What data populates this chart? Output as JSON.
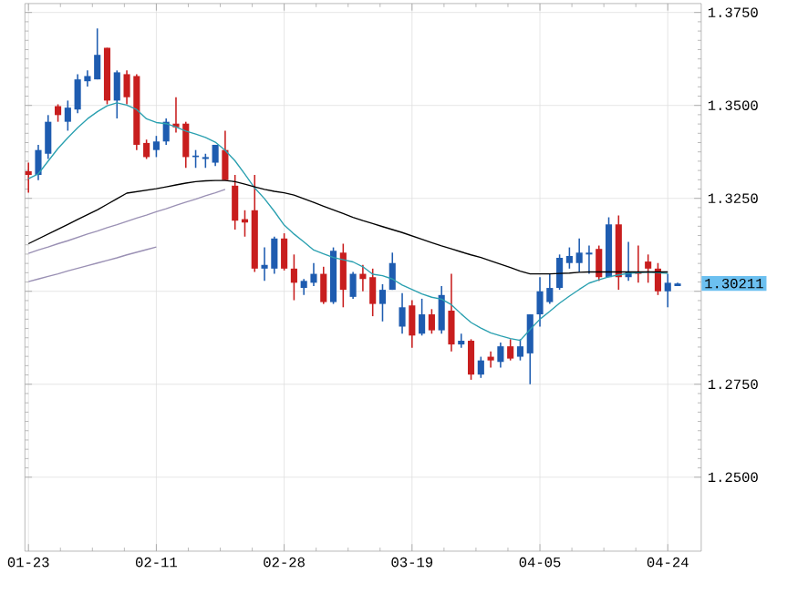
{
  "chart_data": {
    "type": "candlestick",
    "categories": [
      "01-23",
      null,
      null,
      null,
      null,
      null,
      null,
      null,
      null,
      null,
      null,
      null,
      null,
      "02-11",
      null,
      null,
      null,
      null,
      null,
      null,
      null,
      null,
      null,
      null,
      null,
      null,
      "02-28",
      null,
      null,
      null,
      null,
      null,
      null,
      null,
      null,
      null,
      null,
      null,
      null,
      "03-19",
      null,
      null,
      null,
      null,
      null,
      null,
      null,
      null,
      null,
      null,
      null,
      null,
      "04-05",
      null,
      null,
      null,
      null,
      null,
      null,
      null,
      null,
      null,
      null,
      null,
      null,
      "04-24",
      null
    ],
    "ohlc": [
      [
        1.3323,
        1.3346,
        1.3265,
        1.3313
      ],
      [
        1.3313,
        1.3394,
        1.3299,
        1.338
      ],
      [
        1.337,
        1.3474,
        1.3356,
        1.3456
      ],
      [
        1.3498,
        1.3503,
        1.3456,
        1.3474
      ],
      [
        1.3456,
        1.3513,
        1.3432,
        1.3494
      ],
      [
        1.3489,
        1.3584,
        1.3479,
        1.357
      ],
      [
        1.3565,
        1.3594,
        1.3551,
        1.3579
      ],
      [
        1.357,
        1.3707,
        1.357,
        1.3636
      ],
      [
        1.3655,
        1.3655,
        1.3503,
        1.3513
      ],
      [
        1.3513,
        1.3594,
        1.3465,
        1.3589
      ],
      [
        1.3584,
        1.3594,
        1.3503,
        1.3522
      ],
      [
        1.3579,
        1.3584,
        1.338,
        1.3394
      ],
      [
        1.3399,
        1.3408,
        1.3356,
        1.3361
      ],
      [
        1.338,
        1.3418,
        1.3361,
        1.3403
      ],
      [
        1.3403,
        1.3465,
        1.3394,
        1.3456
      ],
      [
        1.3451,
        1.3522,
        1.3427,
        1.3441
      ],
      [
        1.3451,
        1.3456,
        1.3332,
        1.3361
      ],
      [
        1.3361,
        1.338,
        1.3332,
        1.3365
      ],
      [
        1.3356,
        1.337,
        1.3332,
        1.3361
      ],
      [
        1.3346,
        1.3394,
        1.3337,
        1.3394
      ],
      [
        1.338,
        1.3432,
        1.3299,
        1.3299
      ],
      [
        1.3284,
        1.3313,
        1.3166,
        1.319
      ],
      [
        1.3194,
        1.3218,
        1.3147,
        1.3185
      ],
      [
        1.3218,
        1.3313,
        1.3052,
        1.3061
      ],
      [
        1.3061,
        1.3118,
        1.3028,
        1.3071
      ],
      [
        1.3061,
        1.3147,
        1.3047,
        1.3142
      ],
      [
        1.3142,
        1.3156,
        1.3056,
        1.3061
      ],
      [
        1.3061,
        1.3099,
        1.2976,
        1.3023
      ],
      [
        1.3009,
        1.3033,
        1.299,
        1.3028
      ],
      [
        1.3023,
        1.3076,
        1.3014,
        1.3047
      ],
      [
        1.3047,
        1.3066,
        1.2966,
        1.2971
      ],
      [
        1.2971,
        1.3118,
        1.2966,
        1.3109
      ],
      [
        1.3104,
        1.3128,
        1.2957,
        1.3004
      ],
      [
        1.2985,
        1.3052,
        1.298,
        1.3047
      ],
      [
        1.3047,
        1.3071,
        1.3,
        1.3033
      ],
      [
        1.3038,
        1.3061,
        1.2933,
        1.2966
      ],
      [
        1.2966,
        1.3019,
        1.2919,
        1.3004
      ],
      [
        1.3004,
        1.3104,
        1.3004,
        1.3076
      ],
      [
        1.2905,
        1.2995,
        1.2886,
        1.2957
      ],
      [
        1.2962,
        1.2976,
        1.2848,
        1.2881
      ],
      [
        1.2886,
        1.298,
        1.2881,
        1.2938
      ],
      [
        1.2938,
        1.2952,
        1.2886,
        1.2895
      ],
      [
        1.2895,
        1.3014,
        1.2886,
        1.299
      ],
      [
        1.2948,
        1.3047,
        1.2838,
        1.2857
      ],
      [
        1.2857,
        1.2886,
        1.2848,
        1.2867
      ],
      [
        1.2867,
        1.2871,
        1.2762,
        1.2776
      ],
      [
        1.2776,
        1.2824,
        1.2767,
        1.2814
      ],
      [
        1.2824,
        1.2838,
        1.2795,
        1.2814
      ],
      [
        1.281,
        1.2862,
        1.2795,
        1.2852
      ],
      [
        1.2852,
        1.2871,
        1.2814,
        1.2819
      ],
      [
        1.2824,
        1.2871,
        1.2814,
        1.2852
      ],
      [
        1.2833,
        1.2938,
        1.275,
        1.2938
      ],
      [
        1.2938,
        1.3038,
        1.2905,
        1.3
      ],
      [
        1.2971,
        1.3047,
        1.2966,
        1.3009
      ],
      [
        1.3009,
        1.3099,
        1.3004,
        1.309
      ],
      [
        1.3076,
        1.3118,
        1.3061,
        1.3095
      ],
      [
        1.3076,
        1.3142,
        1.3052,
        1.3104
      ],
      [
        1.3099,
        1.3123,
        1.3047,
        1.3104
      ],
      [
        1.3114,
        1.3123,
        1.3028,
        1.3038
      ],
      [
        1.3038,
        1.3199,
        1.3038,
        1.318
      ],
      [
        1.318,
        1.3204,
        1.3004,
        1.3038
      ],
      [
        1.3038,
        1.3133,
        1.3028,
        1.3052
      ],
      [
        1.3052,
        1.3123,
        1.3023,
        1.3047
      ],
      [
        1.308,
        1.3099,
        1.3023,
        1.3061
      ],
      [
        1.3061,
        1.3076,
        1.299,
        1.3
      ],
      [
        1.3,
        1.3047,
        1.2957,
        1.3023
      ],
      [
        1.3014,
        1.3023,
        1.3014,
        1.3021
      ]
    ],
    "colors": [
      "#c81e1e",
      "#1e5cb0",
      "#1e5cb0",
      "#c81e1e",
      "#1e5cb0",
      "#1e5cb0",
      "#1e5cb0",
      "#1e5cb0",
      "#c81e1e",
      "#1e5cb0",
      "#c81e1e",
      "#c81e1e",
      "#c81e1e",
      "#1e5cb0",
      "#1e5cb0",
      "#c81e1e",
      "#c81e1e",
      "#1e5cb0",
      "#1e5cb0",
      "#1e5cb0",
      "#c81e1e",
      "#c81e1e",
      "#c81e1e",
      "#c81e1e",
      "#1e5cb0",
      "#1e5cb0",
      "#c81e1e",
      "#c81e1e",
      "#1e5cb0",
      "#1e5cb0",
      "#c81e1e",
      "#1e5cb0",
      "#c81e1e",
      "#1e5cb0",
      "#c81e1e",
      "#c81e1e",
      "#1e5cb0",
      "#1e5cb0",
      "#1e5cb0",
      "#c81e1e",
      "#1e5cb0",
      "#c81e1e",
      "#1e5cb0",
      "#c81e1e",
      "#1e5cb0",
      "#c81e1e",
      "#1e5cb0",
      "#c81e1e",
      "#1e5cb0",
      "#c81e1e",
      "#1e5cb0",
      "#1e5cb0",
      "#1e5cb0",
      "#1e5cb0",
      "#1e5cb0",
      "#1e5cb0",
      "#1e5cb0",
      "#1e5cb0",
      "#c81e1e",
      "#1e5cb0",
      "#c81e1e",
      "#1e5cb0",
      "#c81e1e",
      "#c81e1e",
      "#c81e1e",
      "#1e5cb0",
      "#1e5cb0"
    ],
    "series": [
      {
        "type": "line",
        "color": "#2aa0b0",
        "values": [
          1.3303,
          1.3316,
          1.335,
          1.3384,
          1.3413,
          1.344,
          1.3464,
          1.3483,
          1.3499,
          1.3507,
          1.3501,
          1.3489,
          1.3464,
          1.3454,
          1.3451,
          1.3442,
          1.3431,
          1.3423,
          1.3414,
          1.3401,
          1.3379,
          1.3351,
          1.3315,
          1.3278,
          1.3249,
          1.3215,
          1.3178,
          1.3154,
          1.3133,
          1.3111,
          1.3101,
          1.3091,
          1.3085,
          1.3079,
          1.3066,
          1.3046,
          1.3042,
          1.3033,
          1.3017,
          1.3005,
          1.2993,
          1.2984,
          1.2979,
          1.2964,
          1.2939,
          1.2916,
          1.2901,
          1.2888,
          1.288,
          1.2873,
          1.2868,
          1.2897,
          1.2925,
          1.2946,
          1.2968,
          1.2987,
          1.3005,
          1.3022,
          1.3031,
          1.3039,
          1.3044,
          1.3048,
          1.305,
          1.3052,
          1.305,
          1.3048,
          null
        ]
      },
      {
        "type": "line",
        "color": "#000000",
        "values": [
          1.3128,
          1.3141,
          1.3154,
          1.3167,
          1.318,
          1.3193,
          1.3206,
          1.3219,
          1.3234,
          1.3249,
          1.3264,
          1.3268,
          1.3272,
          1.3276,
          1.3281,
          1.3286,
          1.3291,
          1.3295,
          1.3297,
          1.3298,
          1.3298,
          1.3295,
          1.3288,
          1.3281,
          1.3274,
          1.3269,
          1.3265,
          1.3259,
          1.3249,
          1.3239,
          1.3229,
          1.3219,
          1.3209,
          1.3199,
          1.319,
          1.3182,
          1.3174,
          1.3166,
          1.3158,
          1.3149,
          1.314,
          1.3131,
          1.3122,
          1.3114,
          1.3106,
          1.3098,
          1.3091,
          1.3082,
          1.3073,
          1.3064,
          1.3054,
          1.3047,
          1.3047,
          1.3047,
          1.3048,
          1.3049,
          1.3051,
          1.3052,
          1.3052,
          1.3052,
          1.3052,
          1.3052,
          1.3052,
          1.3052,
          1.3052,
          1.3052,
          null
        ]
      },
      {
        "type": "line",
        "color": "#9a90b4",
        "values": [
          1.3102,
          1.3111,
          1.3119,
          1.3128,
          1.3136,
          1.3145,
          1.3154,
          1.3162,
          1.3171,
          1.3179,
          1.3188,
          1.3197,
          1.3205,
          1.3214,
          1.3222,
          1.3231,
          1.324,
          1.3248,
          1.3257,
          1.3265,
          1.3274,
          null,
          null,
          null,
          null,
          null,
          null,
          null,
          null,
          null,
          null,
          null,
          null,
          null,
          null,
          null,
          null,
          null,
          null,
          null,
          null,
          null,
          null,
          null,
          null,
          null,
          null,
          null,
          null,
          null,
          null,
          null,
          null,
          null,
          null,
          null,
          null,
          null,
          null,
          null,
          null,
          null,
          null,
          null,
          null,
          null,
          null
        ]
      },
      {
        "type": "line",
        "color": "#9a90b4",
        "values": [
          1.3026,
          1.3033,
          1.304,
          1.3047,
          1.3055,
          1.3062,
          1.3069,
          1.3076,
          1.3083,
          1.309,
          1.3098,
          1.3105,
          1.3112,
          1.3119,
          null,
          null,
          null,
          null,
          null,
          null,
          null,
          null,
          null,
          null,
          null,
          null,
          null,
          null,
          null,
          null,
          null,
          null,
          null,
          null,
          null,
          null,
          null,
          null,
          null,
          null,
          null,
          null,
          null,
          null,
          null,
          null,
          null,
          null,
          null,
          null,
          null,
          null,
          null,
          null,
          null,
          null,
          null,
          null,
          null,
          null,
          null,
          null,
          null,
          null,
          null,
          null,
          null
        ]
      }
    ],
    "ylim": [
      1.2301,
      1.3774
    ],
    "yticks": [
      {
        "value": 1.25,
        "label": "1.2500"
      },
      {
        "value": 1.275,
        "label": "1.2750"
      },
      {
        "value": 1.3,
        "label": null
      },
      {
        "value": 1.325,
        "label": "1.3250"
      },
      {
        "value": 1.35,
        "label": "1.3500"
      },
      {
        "value": 1.375,
        "label": "1.3750"
      }
    ],
    "annotations": [
      "1.30211"
    ],
    "grid": true,
    "marker": "none",
    "line_style": "solid"
  }
}
